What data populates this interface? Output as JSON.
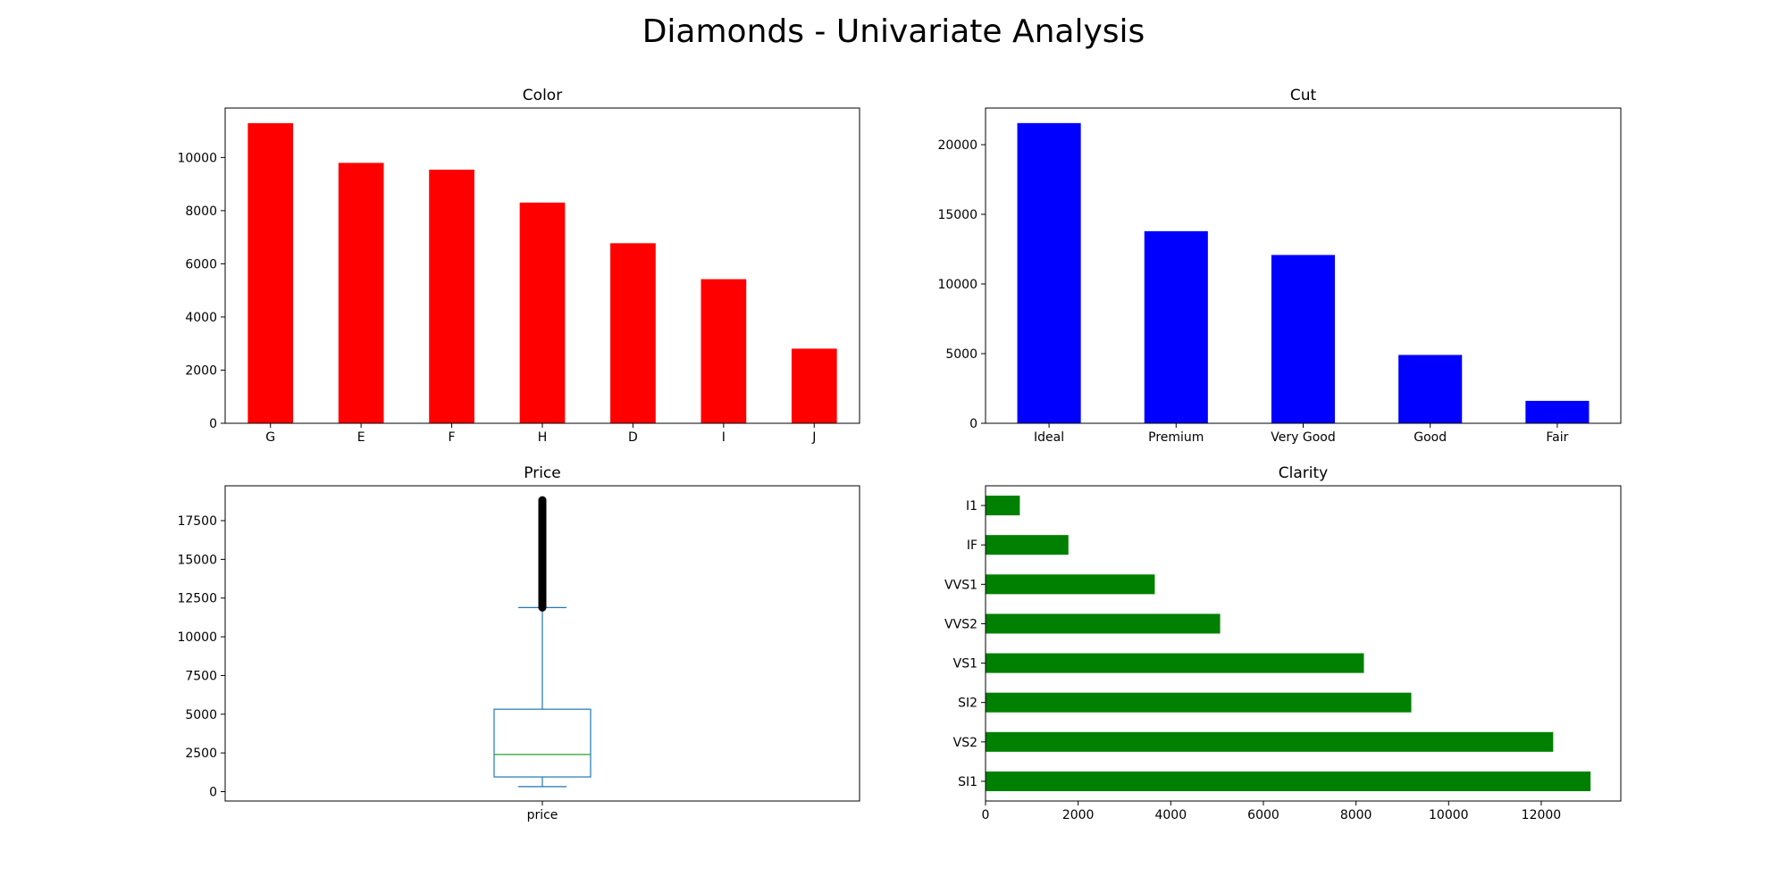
{
  "figure": {
    "title": "Diamonds - Univariate Analysis"
  },
  "chart_data": [
    {
      "id": "color",
      "type": "bar",
      "title": "Color",
      "categories": [
        "G",
        "E",
        "F",
        "H",
        "D",
        "I",
        "J"
      ],
      "values": [
        11292,
        9797,
        9542,
        8304,
        6775,
        5422,
        2808
      ],
      "ylim": [
        0,
        11860
      ],
      "yticks": [
        0,
        2000,
        4000,
        6000,
        8000,
        10000
      ],
      "colors": {
        "bar": "#ff0000"
      }
    },
    {
      "id": "cut",
      "type": "bar",
      "title": "Cut",
      "categories": [
        "Ideal",
        "Premium",
        "Very Good",
        "Good",
        "Fair"
      ],
      "values": [
        21551,
        13791,
        12082,
        4906,
        1610
      ],
      "ylim": [
        0,
        22630
      ],
      "yticks": [
        0,
        5000,
        10000,
        15000,
        20000
      ],
      "colors": {
        "bar": "#0000ff"
      }
    },
    {
      "id": "price",
      "type": "box",
      "title": "Price",
      "categories": [
        "price"
      ],
      "stats": {
        "min": 326,
        "q1": 950,
        "median": 2401,
        "q3": 5324,
        "whisker_high": 11886,
        "max": 18823
      },
      "ylim": [
        -605,
        19750
      ],
      "yticks": [
        0,
        2500,
        5000,
        7500,
        10000,
        12500,
        15000,
        17500
      ],
      "colors": {
        "box": "#1f77b4",
        "median": "#2ca02c",
        "outlier": "#000000"
      }
    },
    {
      "id": "clarity",
      "type": "barh",
      "title": "Clarity",
      "categories": [
        "SI1",
        "VS2",
        "SI2",
        "VS1",
        "VVS2",
        "VVS1",
        "IF",
        "I1"
      ],
      "values": [
        13065,
        12258,
        9194,
        8171,
        5066,
        3655,
        1790,
        741
      ],
      "xlim": [
        0,
        13718
      ],
      "xticks": [
        0,
        2000,
        4000,
        6000,
        8000,
        10000,
        12000
      ],
      "colors": {
        "bar": "#008000"
      }
    }
  ]
}
